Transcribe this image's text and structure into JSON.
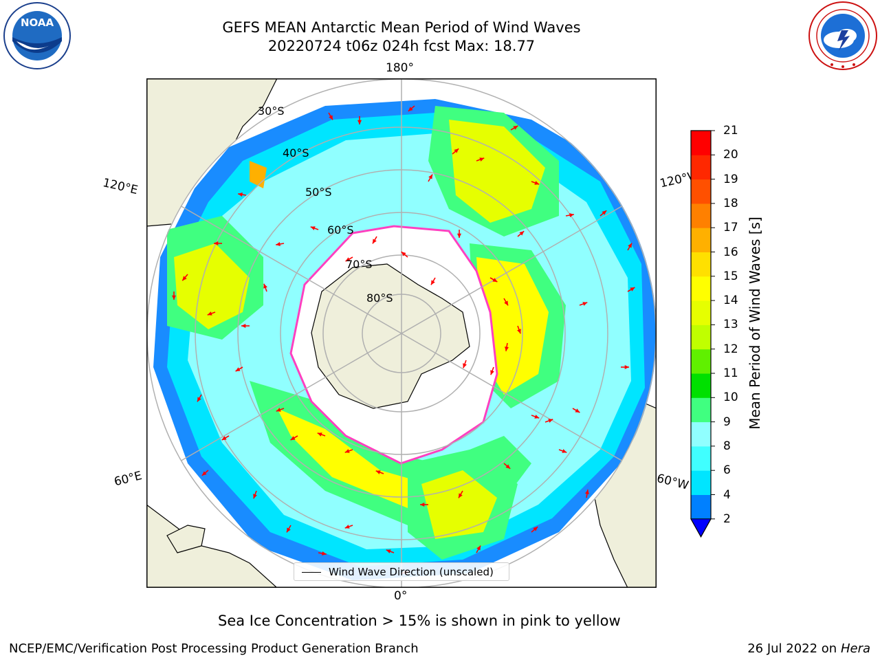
{
  "header": {
    "title_line1": "GEFS MEAN Antarctic Mean Period of Wind Waves",
    "title_line2": "20220724 t06z 024h fcst   Max: 18.77"
  },
  "map": {
    "lon_labels": {
      "top": "180°",
      "left_upper": "120°E",
      "right_upper": "120°W",
      "left_lower": "60°E",
      "right_lower": "60°W",
      "bottom": "0°"
    },
    "lat_labels": [
      "30°S",
      "40°S",
      "50°S",
      "60°S",
      "70°S",
      "80°S"
    ],
    "legend_text": "Wind Wave Direction (unscaled)"
  },
  "colorbar": {
    "label": "Mean Period of Wind Waves [s]",
    "ticks": [
      "21",
      "20",
      "19",
      "18",
      "17",
      "16",
      "15",
      "14",
      "13",
      "12",
      "11",
      "10",
      "9",
      "8",
      "6",
      "4",
      "2"
    ],
    "levels": [
      2,
      4,
      6,
      8,
      9,
      10,
      11,
      12,
      13,
      14,
      15,
      16,
      17,
      18,
      19,
      20,
      21
    ],
    "colors": [
      "#0080ff",
      "#00e5ff",
      "#40ffff",
      "#90ffff",
      "#40ff80",
      "#00e000",
      "#60f000",
      "#c0ff00",
      "#e6ff00",
      "#ffff00",
      "#ffe000",
      "#ffb000",
      "#ff8000",
      "#ff5000",
      "#ff2800",
      "#ff0000"
    ],
    "under_color": "#0000ff"
  },
  "footnote": "Sea Ice Concentration > 15% is shown in pink to yellow",
  "footer": {
    "left": "NCEP/EMC/Verification Post Processing Product Generation Branch",
    "right_prefix": "26 Jul 2022 on ",
    "right_host": "Hera"
  },
  "logos": {
    "noaa_text": "NOAA"
  }
}
